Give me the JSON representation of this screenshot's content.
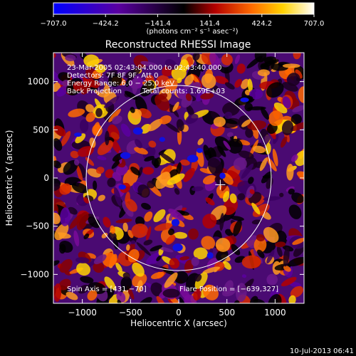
{
  "chart_data": {
    "type": "heatmap",
    "title": "Reconstructed RHESSI Image",
    "xlabel": "Heliocentric X (arcsec)",
    "ylabel": "Heliocentric Y (arcsec)",
    "xlim": [
      -1300,
      1300
    ],
    "ylim": [
      -1300,
      1300
    ],
    "xticks": [
      -1000,
      -500,
      0,
      500,
      1000
    ],
    "yticks": [
      -1000,
      -500,
      0,
      500,
      1000
    ],
    "xtick_labels": [
      "−1000",
      "−500",
      "0",
      "500",
      "1000"
    ],
    "ytick_labels": [
      "−1000",
      "−500",
      "0",
      "500",
      "1000"
    ],
    "colorbar": {
      "min": -707.0,
      "max": 707.0,
      "ticks": [
        -707.0,
        -424.2,
        -141.4,
        141.4,
        424.2,
        707.0
      ],
      "tick_labels": [
        "−707.0",
        "−424.2",
        "−141.4",
        "141.4",
        "424.2",
        "707.0"
      ],
      "unit_label": "(photons cm⁻² s⁻¹ asec⁻²)",
      "colors": [
        "#0000ff",
        "#5a00a0",
        "#000000",
        "#b40000",
        "#ff6a00",
        "#ffd200",
        "#ffffff"
      ]
    },
    "solar_disk_radius_arcsec": 960,
    "flare_position": [
      -639,
      327
    ],
    "spin_axis": [
      431,
      -70
    ],
    "marker_position": [
      431,
      -70
    ],
    "annotations": {
      "time": "23-Mar-2005 02:43:04.000 to 02:43:40.000",
      "detectors": "Detectors: 7F 8F 9F, Att 0",
      "energy": "Energy Range: 6.0 − 25.0 keV",
      "method": "Back Projection",
      "counts": "Total counts: 1.69E+03",
      "spin_axis": "Spin Axis = [431,−70]",
      "flare_position": "Flare Position = [−639,327]"
    }
  },
  "footer": {
    "timestamp": "10-Jul-2013 06:41"
  }
}
